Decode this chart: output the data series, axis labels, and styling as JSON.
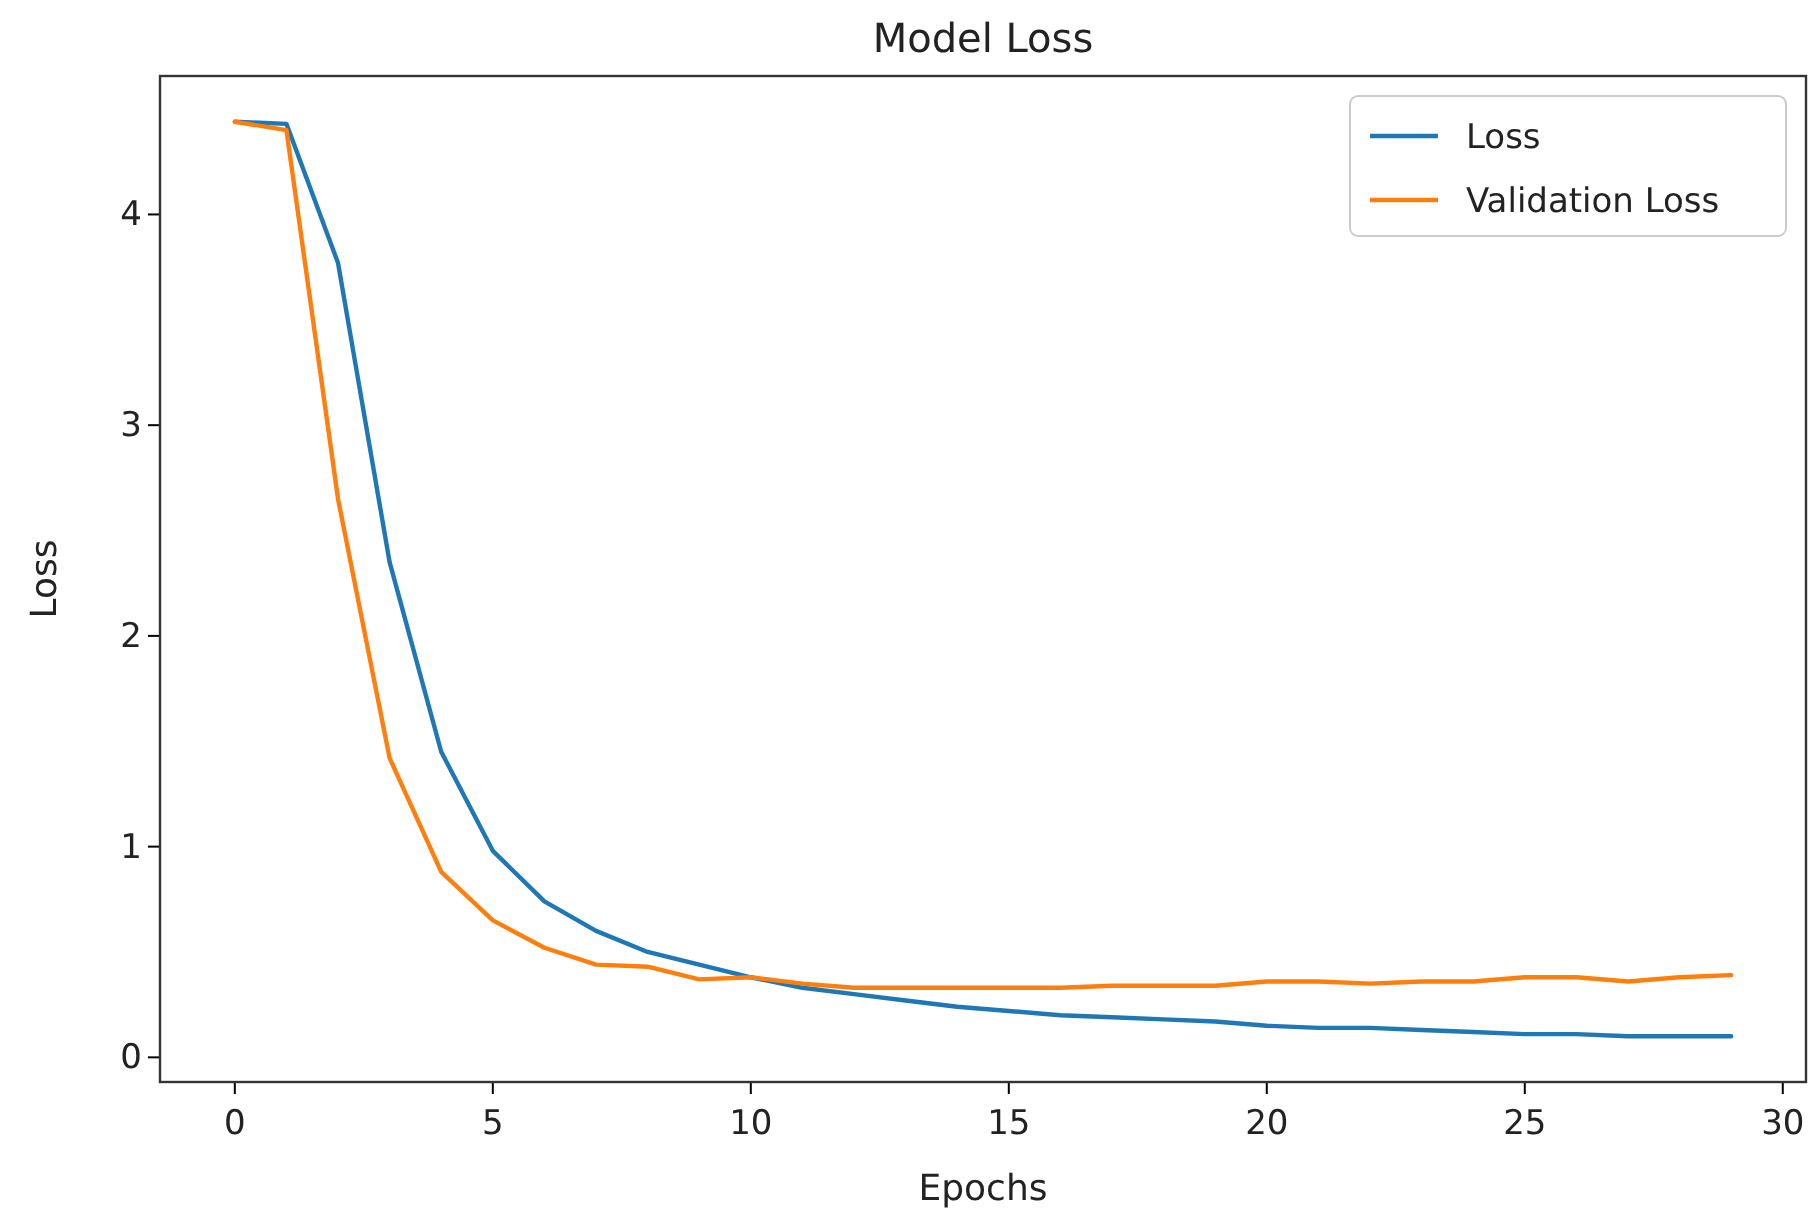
{
  "chart_data": {
    "type": "line",
    "title": "Model Loss",
    "xlabel": "Epochs",
    "ylabel": "Loss",
    "x": [
      0,
      1,
      2,
      3,
      4,
      5,
      6,
      7,
      8,
      9,
      10,
      11,
      12,
      13,
      14,
      15,
      16,
      17,
      18,
      19,
      20,
      21,
      22,
      23,
      24,
      25,
      26,
      27,
      28,
      29
    ],
    "series": [
      {
        "name": "Loss",
        "color": "#1f77b4",
        "values": [
          4.44,
          4.43,
          3.77,
          2.35,
          1.45,
          0.98,
          0.74,
          0.6,
          0.5,
          0.44,
          0.38,
          0.33,
          0.3,
          0.27,
          0.24,
          0.22,
          0.2,
          0.19,
          0.18,
          0.17,
          0.15,
          0.14,
          0.14,
          0.13,
          0.12,
          0.11,
          0.11,
          0.1,
          0.1,
          0.1
        ]
      },
      {
        "name": "Validation Loss",
        "color": "#ff7f0e",
        "values": [
          4.44,
          4.4,
          2.65,
          1.42,
          0.88,
          0.65,
          0.52,
          0.44,
          0.43,
          0.37,
          0.38,
          0.35,
          0.33,
          0.33,
          0.33,
          0.33,
          0.33,
          0.34,
          0.34,
          0.34,
          0.36,
          0.36,
          0.35,
          0.36,
          0.36,
          0.38,
          0.38,
          0.36,
          0.38,
          0.39
        ]
      }
    ],
    "xlim": [
      -1.45,
      30.45
    ],
    "ylim": [
      -0.117,
      4.657
    ],
    "xticks": [
      0,
      5,
      10,
      15,
      20,
      25,
      30
    ],
    "yticks": [
      0,
      1,
      2,
      3,
      4
    ],
    "grid": false,
    "legend": "top right",
    "marker": "none",
    "line_style": "solid"
  }
}
